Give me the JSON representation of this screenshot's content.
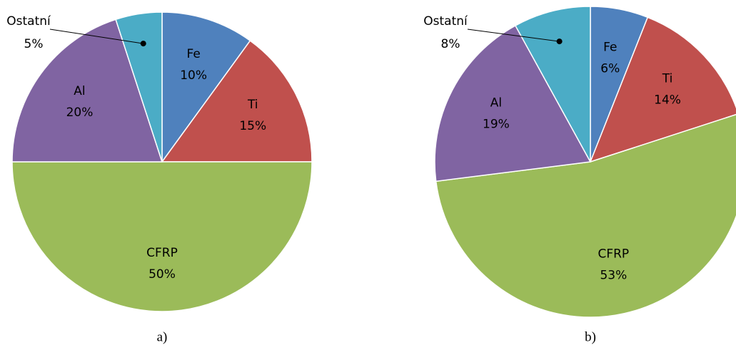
{
  "chart_data": [
    {
      "type": "pie",
      "caption": "a)",
      "categories": [
        "Fe",
        "Ti",
        "CFRP",
        "Al",
        "Ostatní"
      ],
      "values": [
        10,
        15,
        50,
        20,
        5
      ],
      "value_labels": [
        "10%",
        "15%",
        "50%",
        "20%",
        "5%"
      ],
      "colors": [
        "#4f81bd",
        "#c0504d",
        "#9bbb59",
        "#8064a2",
        "#4bacc6"
      ]
    },
    {
      "type": "pie",
      "caption": "b)",
      "categories": [
        "Fe",
        "Ti",
        "CFRP",
        "Al",
        "Ostatní"
      ],
      "values": [
        6,
        14,
        53,
        19,
        8
      ],
      "value_labels": [
        "6%",
        "14%",
        "53%",
        "19%",
        "8%"
      ],
      "colors": [
        "#4f81bd",
        "#c0504d",
        "#9bbb59",
        "#8064a2",
        "#4bacc6"
      ]
    }
  ]
}
